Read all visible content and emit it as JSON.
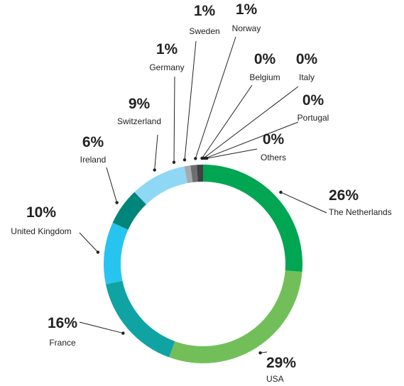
{
  "chart_data": {
    "type": "donut",
    "categories": [
      "The Netherlands",
      "USA",
      "France",
      "United Kingdom",
      "Ireland",
      "Switzerland",
      "Germany",
      "Sweden",
      "Norway",
      "Belgium",
      "Italy",
      "Portugal",
      "Others"
    ],
    "values": [
      26,
      29,
      16,
      10,
      6,
      9,
      1,
      1,
      1,
      0,
      0,
      0,
      0
    ],
    "value_labels": [
      "26%",
      "29%",
      "16%",
      "10%",
      "6%",
      "9%",
      "1%",
      "1%",
      "1%",
      "0%",
      "0%",
      "0%",
      "0%"
    ],
    "colors": [
      "#00a651",
      "#72bf5a",
      "#10a3a3",
      "#27c4f0",
      "#00857a",
      "#8fd8f5",
      "#a7a9ac",
      "#6d6e71",
      "#414042",
      "#009e9a",
      "#009e9a",
      "#009e9a",
      "#009e9a"
    ]
  }
}
